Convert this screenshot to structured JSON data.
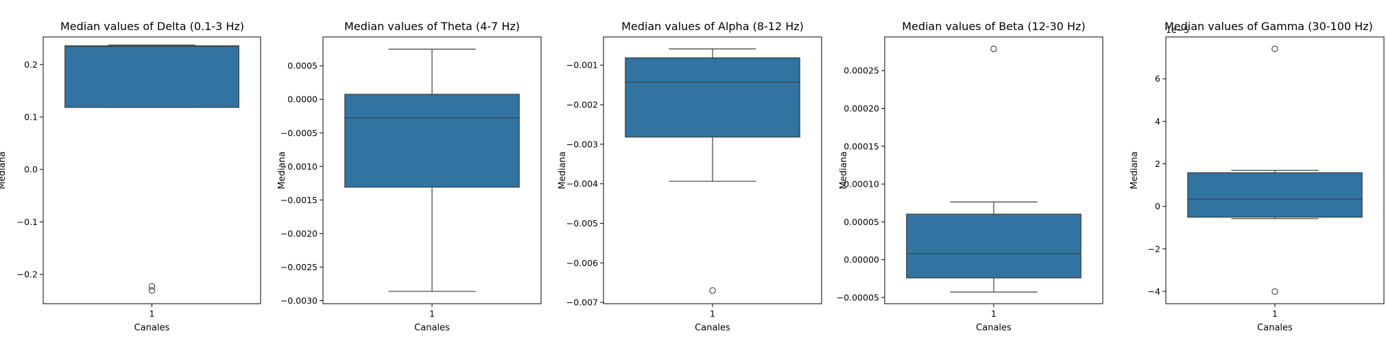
{
  "chart_data": [
    {
      "type": "box",
      "title": "Median values of Delta (0.1-3 Hz)",
      "xlabel": "Canales",
      "ylabel": "Mediana",
      "categories": [
        "1"
      ],
      "ylim": [
        -0.2559,
        0.2525
      ],
      "yticks": [
        -0.2,
        -0.1,
        0.0,
        0.1,
        0.2
      ],
      "ytick_labels": [
        "−0.2",
        "−0.1",
        "0.0",
        "0.1",
        "0.2"
      ],
      "offset_text": "",
      "box": {
        "whislo": 0.1182,
        "q1": 0.1182,
        "median": 0.2346,
        "q3": 0.2356,
        "whishi": 0.2371,
        "fliers": [
          -0.2229,
          -0.2307
        ]
      },
      "color": "#3274a1",
      "grid": false,
      "legend": "none"
    },
    {
      "type": "box",
      "title": "Median values of Theta (4-7 Hz)",
      "xlabel": "Canales",
      "ylabel": "Mediana",
      "categories": [
        "1"
      ],
      "ylim": [
        -0.003046,
        0.00093
      ],
      "yticks": [
        -0.003,
        -0.0025,
        -0.002,
        -0.0015,
        -0.001,
        -0.0005,
        0.0,
        0.0005
      ],
      "ytick_labels": [
        "−0.0030",
        "−0.0025",
        "−0.0020",
        "−0.0015",
        "−0.0010",
        "−0.0005",
        "0.0000",
        "0.0005"
      ],
      "offset_text": "",
      "box": {
        "whislo": -0.002863,
        "q1": -0.001309,
        "median": -0.000275,
        "q3": 7.5e-05,
        "whishi": 0.000748,
        "fliers": []
      },
      "color": "#3274a1",
      "grid": false,
      "legend": "none"
    },
    {
      "type": "box",
      "title": "Median values of Alpha (8-12 Hz)",
      "xlabel": "Canales",
      "ylabel": "Mediana",
      "categories": [
        "1"
      ],
      "ylim": [
        -0.007031,
        -0.000288
      ],
      "yticks": [
        -0.007,
        -0.006,
        -0.005,
        -0.004,
        -0.003,
        -0.002,
        -0.001
      ],
      "ytick_labels": [
        "−0.007",
        "−0.006",
        "−0.005",
        "−0.004",
        "−0.003",
        "−0.002",
        "−0.001"
      ],
      "offset_text": "",
      "box": {
        "whislo": -0.003937,
        "q1": -0.002818,
        "median": -0.001432,
        "q3": -0.000817,
        "whishi": -0.00059,
        "fliers": [
          -0.006698
        ]
      },
      "color": "#3274a1",
      "grid": false,
      "legend": "none"
    },
    {
      "type": "box",
      "title": "Median values of Beta (12-30 Hz)",
      "xlabel": "Canales",
      "ylabel": "Mediana",
      "categories": [
        "1"
      ],
      "ylim": [
        -5.82e-05,
        0.0002945
      ],
      "yticks": [
        -5e-05,
        0.0,
        5e-05,
        0.0001,
        0.00015,
        0.0002,
        0.00025
      ],
      "ytick_labels": [
        "−0.00005",
        "0.00000",
        "0.00005",
        "0.00010",
        "0.00015",
        "0.00020",
        "0.00025"
      ],
      "offset_text": "",
      "box": {
        "whislo": -4.28e-05,
        "q1": -2.41e-05,
        "median": 8.1e-06,
        "q3": 6.02e-05,
        "whishi": 7.63e-05,
        "fliers": [
          0.0002787
        ]
      },
      "color": "#3274a1",
      "grid": false,
      "legend": "none"
    },
    {
      "type": "box",
      "title": "Median values of Gamma (30-100 Hz)",
      "xlabel": "Canales",
      "ylabel": "Mediana",
      "categories": [
        "1"
      ],
      "ylim": [
        -4.58,
        7.97
      ],
      "yticks": [
        -4,
        -2,
        0,
        2,
        4,
        6
      ],
      "ytick_labels": [
        "−4",
        "−2",
        "0",
        "2",
        "4",
        "6"
      ],
      "offset_text": "1e−5",
      "box": {
        "whislo": -0.58,
        "q1": -0.51,
        "median": 0.34,
        "q3": 1.58,
        "whishi": 1.69,
        "fliers": [
          7.41,
          -4.01
        ]
      },
      "color": "#3274a1",
      "grid": false,
      "legend": "none"
    }
  ]
}
